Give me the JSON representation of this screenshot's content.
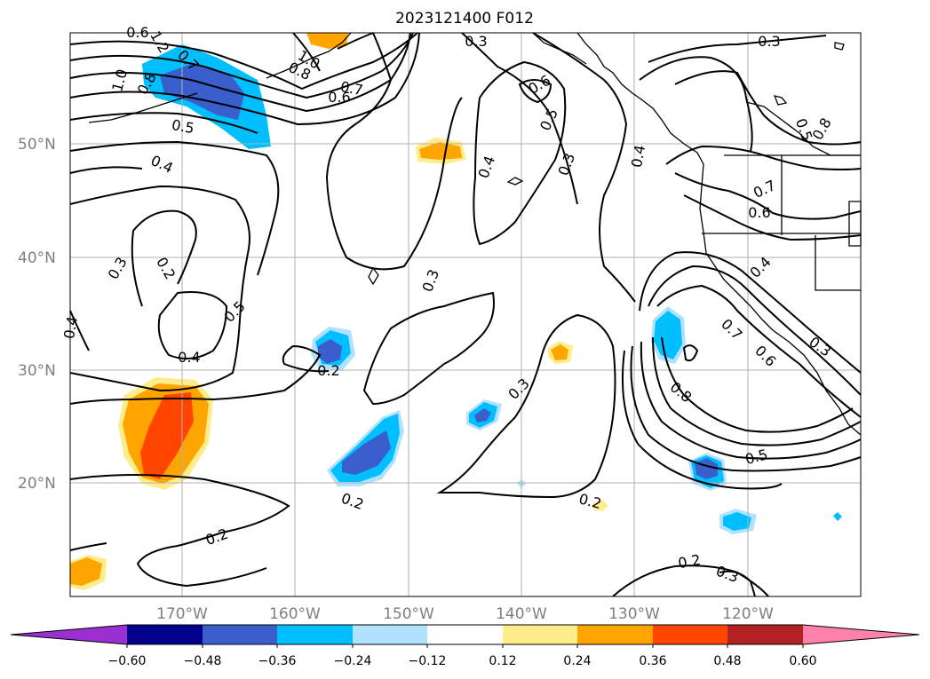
{
  "title": "2023121400 F012",
  "lat_labels": [
    "50°N",
    "40°N",
    "30°N",
    "20°N"
  ],
  "lon_labels": [
    "170°W",
    "160°W",
    "150°W",
    "140°W",
    "130°W",
    "120°W"
  ],
  "contour_labels": [
    "0.6",
    "0.7",
    "0.8",
    "1.0",
    "1.2",
    "1.0",
    "0.8",
    "0.7",
    "0.6",
    "0.3",
    "0.3",
    "0.5",
    "0.4",
    "0.3",
    "0.2",
    "0.4",
    "0.5",
    "0.4",
    "0.3",
    "0.2",
    "0.2",
    "0.2",
    "0.3",
    "0.2",
    "0.2",
    "0.3",
    "0.6",
    "0.5",
    "0.3",
    "0.4",
    "0.4",
    "0.7",
    "0.6",
    "0.5",
    "0.8",
    "0.4",
    "0.7",
    "0.6",
    "0.8",
    "0.5",
    "0.3"
  ],
  "colorbar": {
    "tick_labels": [
      "−0.60",
      "−0.48",
      "−0.36",
      "−0.24",
      "−0.12",
      "0.12",
      "0.24",
      "0.36",
      "0.48",
      "0.60"
    ],
    "colors": [
      "#9b30d0",
      "#00008b",
      "#3a5fcd",
      "#00bfff",
      "#b0e2ff",
      "#ffffff",
      "#ffec8b",
      "#ffa500",
      "#ff4500",
      "#b22222",
      "#ff82ab"
    ]
  }
}
